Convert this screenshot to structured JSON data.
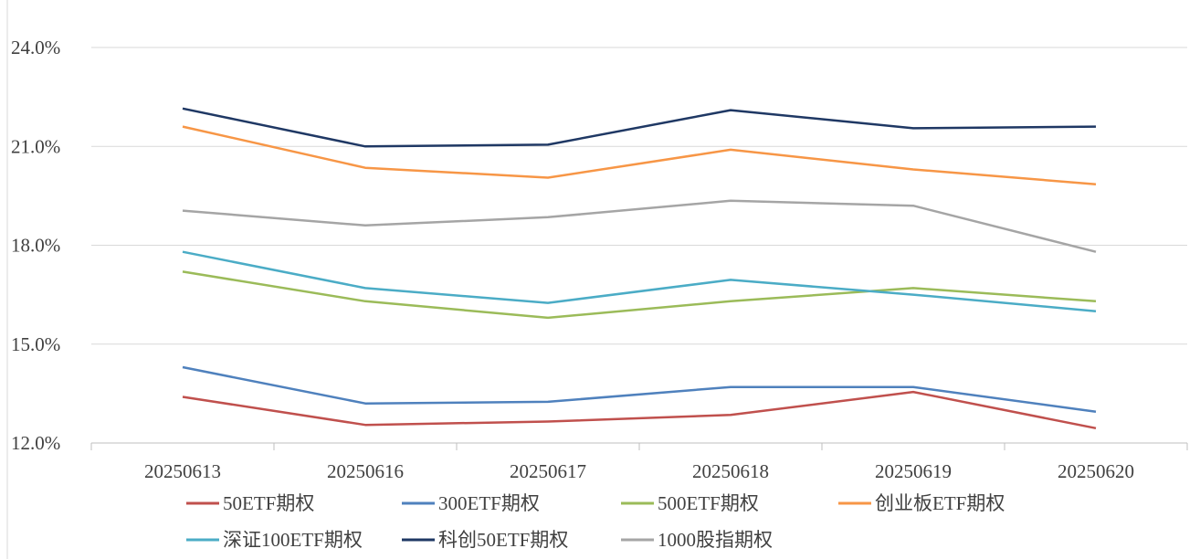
{
  "chart_data": {
    "type": "line",
    "categories": [
      "20250613",
      "20250616",
      "20250617",
      "20250618",
      "20250619",
      "20250620"
    ],
    "ylim": [
      12.0,
      24.0
    ],
    "yticks": [
      "12.0%",
      "15.0%",
      "18.0%",
      "21.0%",
      "24.0%"
    ],
    "ytick_values": [
      12,
      15,
      18,
      21,
      24
    ],
    "grid": true,
    "legend_placement": "bottom",
    "series": [
      {
        "name": "50ETF期权",
        "color": "#c0504d",
        "values": [
          13.4,
          12.55,
          12.65,
          12.85,
          13.55,
          12.45
        ]
      },
      {
        "name": "300ETF期权",
        "color": "#4f81bd",
        "values": [
          14.3,
          13.2,
          13.25,
          13.7,
          13.7,
          12.95
        ]
      },
      {
        "name": "500ETF期权",
        "color": "#9bbb59",
        "values": [
          17.2,
          16.3,
          15.8,
          16.3,
          16.7,
          16.3
        ]
      },
      {
        "name": "创业板ETF期权",
        "color": "#f79646",
        "values": [
          21.6,
          20.35,
          20.05,
          20.9,
          20.3,
          19.85
        ]
      },
      {
        "name": "深证100ETF期权",
        "color": "#4bacc6",
        "values": [
          17.8,
          16.7,
          16.25,
          16.95,
          16.5,
          16.0
        ]
      },
      {
        "name": "科创50ETF期权",
        "color": "#1f3864",
        "values": [
          22.15,
          21.0,
          21.05,
          22.1,
          21.55,
          21.6
        ]
      },
      {
        "name": "1000股指期权",
        "color": "#a5a5a5",
        "values": [
          19.05,
          18.6,
          18.85,
          19.35,
          19.2,
          17.8
        ]
      }
    ]
  }
}
